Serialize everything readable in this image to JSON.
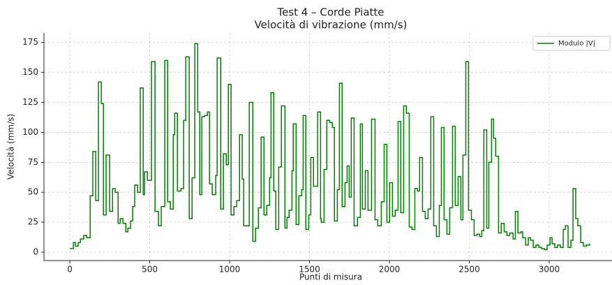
{
  "chart_data": {
    "type": "step",
    "title": "Test 4 – Corde Piatte",
    "subtitle": "Velocità di vibrazione (mm/s)",
    "xlabel": "Punti di misura",
    "ylabel": "Velocità (mm/s)",
    "xlim": [
      -162,
      3393
    ],
    "ylim": [
      -7,
      183
    ],
    "xticks": [
      0,
      500,
      1000,
      1500,
      2000,
      2500,
      3000
    ],
    "yticks": [
      0,
      25,
      50,
      75,
      100,
      125,
      150,
      175
    ],
    "grid": true,
    "legend": "upper right",
    "x": [
      0,
      22,
      35,
      52,
      66,
      87,
      105,
      127,
      144,
      162,
      179,
      197,
      210,
      227,
      249,
      267,
      284,
      302,
      315,
      332,
      350,
      363,
      380,
      393,
      406,
      424,
      441,
      459,
      468,
      485,
      511,
      533,
      555,
      572,
      594,
      612,
      629,
      647,
      656,
      673,
      695,
      712,
      725,
      747,
      765,
      782,
      800,
      813,
      826,
      843,
      861,
      874,
      891,
      913,
      922,
      944,
      961,
      979,
      992,
      1009,
      1027,
      1044,
      1062,
      1079,
      1088,
      1123,
      1145,
      1162,
      1180,
      1197,
      1215,
      1232,
      1250,
      1259,
      1276,
      1289,
      1307,
      1324,
      1346,
      1359,
      1372,
      1390,
      1398,
      1416,
      1433,
      1451,
      1460,
      1477,
      1495,
      1508,
      1525,
      1551,
      1569,
      1573,
      1591,
      1608,
      1626,
      1643,
      1656,
      1674,
      1687,
      1704,
      1722,
      1735,
      1748,
      1761,
      1779,
      1800,
      1818,
      1831,
      1849,
      1866,
      1888,
      1910,
      1927,
      1949,
      1967,
      1984,
      2001,
      2019,
      2036,
      2054,
      2071,
      2089,
      2106,
      2124,
      2141,
      2159,
      2176,
      2189,
      2207,
      2224,
      2242,
      2259,
      2277,
      2294,
      2312,
      2325,
      2342,
      2360,
      2377,
      2395,
      2412,
      2430,
      2447,
      2460,
      2478,
      2495,
      2513,
      2530,
      2548,
      2565,
      2578,
      2591,
      2609,
      2622,
      2639,
      2652,
      2665,
      2683,
      2700,
      2718,
      2735,
      2753,
      2774,
      2788,
      2804,
      2822,
      2834,
      2852,
      2869,
      2883,
      2900,
      2917,
      2935,
      2952,
      2970,
      2987,
      3005,
      3018,
      3035,
      3053,
      3070,
      3088,
      3101,
      3118,
      3136,
      3149,
      3166,
      3179,
      3197,
      3214,
      3232,
      3254
    ],
    "series": [
      {
        "name": "Modulo |V|",
        "color": "#008000",
        "values": [
          3,
          8,
          5,
          8,
          11,
          14,
          12,
          47,
          84,
          43,
          142,
          124,
          31,
          81,
          34,
          53,
          50,
          24,
          28,
          24,
          17,
          20,
          26,
          38,
          56,
          50,
          137,
          48,
          67,
          60,
          159,
          34,
          22,
          38,
          160,
          42,
          36,
          98,
          116,
          51,
          53,
          110,
          163,
          28,
          62,
          174,
          117,
          48,
          113,
          114,
          117,
          57,
          48,
          64,
          162,
          36,
          82,
          73,
          140,
          31,
          38,
          43,
          98,
          61,
          22,
          125,
          9,
          20,
          37,
          96,
          31,
          39,
          62,
          133,
          51,
          19,
          71,
          122,
          20,
          29,
          35,
          68,
          107,
          23,
          47,
          52,
          114,
          19,
          31,
          79,
          55,
          117,
          28,
          25,
          69,
          110,
          108,
          104,
          26,
          52,
          141,
          38,
          58,
          72,
          46,
          112,
          22,
          29,
          107,
          36,
          68,
          35,
          111,
          27,
          22,
          42,
          90,
          25,
          58,
          30,
          35,
          109,
          33,
          122,
          116,
          21,
          19,
          53,
          51,
          79,
          34,
          28,
          36,
          113,
          22,
          13,
          39,
          104,
          27,
          15,
          37,
          105,
          39,
          63,
          27,
          81,
          159,
          35,
          27,
          14,
          15,
          13,
          18,
          102,
          20,
          75,
          111,
          95,
          80,
          16,
          24,
          17,
          14,
          16,
          11,
          34,
          16,
          17,
          12,
          6,
          12,
          10,
          4,
          6,
          4,
          3,
          2,
          6,
          12,
          7,
          4,
          6,
          4,
          19,
          22,
          4,
          10,
          53,
          28,
          22,
          8,
          5,
          6,
          7
        ]
      }
    ]
  }
}
